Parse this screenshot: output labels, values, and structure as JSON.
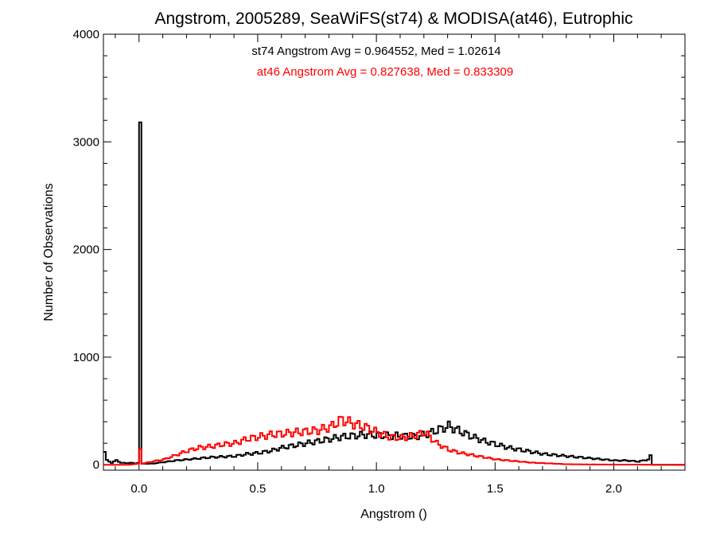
{
  "chart_data": {
    "type": "line",
    "title": "Angstrom, 2005289, SeaWiFS(st74) & MODISA(at46), Eutrophic",
    "xlabel": "Angstrom ()",
    "ylabel": "Number of Observations",
    "xlim": [
      -0.15,
      2.3
    ],
    "ylim": [
      -50,
      4000
    ],
    "xticks": [
      {
        "value": 0.0,
        "label": "0.0"
      },
      {
        "value": 0.5,
        "label": "0.5"
      },
      {
        "value": 1.0,
        "label": "1.0"
      },
      {
        "value": 1.5,
        "label": "1.5"
      },
      {
        "value": 2.0,
        "label": "2.0"
      }
    ],
    "yticks": [
      {
        "value": 0,
        "label": "0"
      },
      {
        "value": 1000,
        "label": "1000"
      },
      {
        "value": 2000,
        "label": "2000"
      },
      {
        "value": 3000,
        "label": "3000"
      },
      {
        "value": 4000,
        "label": "4000"
      }
    ],
    "grid": false,
    "bin_width": 0.01,
    "annotations": [
      {
        "text": "st74 Angstrom Avg = 0.964552, Med = 1.02614",
        "color": "#000000"
      },
      {
        "text": "at46 Angstrom Avg = 0.827638, Med = 0.833309",
        "color": "#ff0000"
      }
    ],
    "series": [
      {
        "color": "#000000",
        "style": "step",
        "points": [
          [
            -0.15,
            120
          ],
          [
            -0.14,
            40
          ],
          [
            -0.12,
            20
          ],
          [
            -0.1,
            40
          ],
          [
            -0.08,
            20
          ],
          [
            -0.06,
            15
          ],
          [
            -0.04,
            20
          ],
          [
            -0.02,
            10
          ],
          [
            -0.01,
            20
          ],
          [
            0.0,
            3050
          ],
          [
            0.01,
            10
          ],
          [
            0.05,
            10
          ],
          [
            0.1,
            25
          ],
          [
            0.15,
            40
          ],
          [
            0.2,
            50
          ],
          [
            0.25,
            60
          ],
          [
            0.3,
            70
          ],
          [
            0.35,
            75
          ],
          [
            0.4,
            80
          ],
          [
            0.45,
            100
          ],
          [
            0.5,
            110
          ],
          [
            0.55,
            130
          ],
          [
            0.6,
            160
          ],
          [
            0.65,
            180
          ],
          [
            0.7,
            200
          ],
          [
            0.75,
            220
          ],
          [
            0.8,
            240
          ],
          [
            0.85,
            260
          ],
          [
            0.9,
            270
          ],
          [
            0.95,
            280
          ],
          [
            1.0,
            275
          ],
          [
            1.05,
            270
          ],
          [
            1.1,
            270
          ],
          [
            1.15,
            260
          ],
          [
            1.2,
            280
          ],
          [
            1.25,
            320
          ],
          [
            1.3,
            360
          ],
          [
            1.35,
            310
          ],
          [
            1.4,
            260
          ],
          [
            1.45,
            220
          ],
          [
            1.5,
            190
          ],
          [
            1.55,
            160
          ],
          [
            1.6,
            140
          ],
          [
            1.65,
            120
          ],
          [
            1.7,
            100
          ],
          [
            1.75,
            90
          ],
          [
            1.8,
            80
          ],
          [
            1.85,
            70
          ],
          [
            1.9,
            60
          ],
          [
            1.95,
            50
          ],
          [
            2.0,
            40
          ],
          [
            2.05,
            40
          ],
          [
            2.1,
            30
          ],
          [
            2.14,
            50
          ],
          [
            2.15,
            80
          ],
          [
            2.16,
            0
          ],
          [
            2.3,
            0
          ]
        ]
      },
      {
        "color": "#ff0000",
        "style": "step",
        "points": [
          [
            -0.15,
            0
          ],
          [
            -0.05,
            0
          ],
          [
            -0.01,
            10
          ],
          [
            0.0,
            140
          ],
          [
            0.01,
            10
          ],
          [
            0.05,
            30
          ],
          [
            0.1,
            50
          ],
          [
            0.15,
            90
          ],
          [
            0.2,
            130
          ],
          [
            0.25,
            160
          ],
          [
            0.3,
            170
          ],
          [
            0.35,
            190
          ],
          [
            0.4,
            200
          ],
          [
            0.45,
            240
          ],
          [
            0.5,
            260
          ],
          [
            0.55,
            280
          ],
          [
            0.6,
            290
          ],
          [
            0.65,
            300
          ],
          [
            0.7,
            310
          ],
          [
            0.75,
            320
          ],
          [
            0.8,
            350
          ],
          [
            0.85,
            420
          ],
          [
            0.9,
            380
          ],
          [
            0.95,
            350
          ],
          [
            1.0,
            300
          ],
          [
            1.05,
            260
          ],
          [
            1.1,
            250
          ],
          [
            1.15,
            270
          ],
          [
            1.2,
            300
          ],
          [
            1.25,
            200
          ],
          [
            1.3,
            140
          ],
          [
            1.35,
            110
          ],
          [
            1.4,
            90
          ],
          [
            1.45,
            70
          ],
          [
            1.5,
            50
          ],
          [
            1.55,
            40
          ],
          [
            1.6,
            30
          ],
          [
            1.65,
            20
          ],
          [
            1.7,
            15
          ],
          [
            1.75,
            10
          ],
          [
            1.8,
            5
          ],
          [
            1.9,
            3
          ],
          [
            2.0,
            2
          ],
          [
            2.3,
            0
          ]
        ]
      }
    ]
  }
}
